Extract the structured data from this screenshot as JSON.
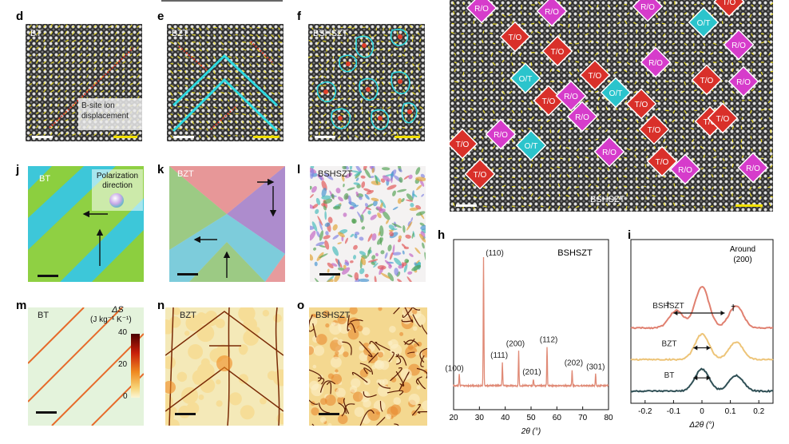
{
  "labels": {
    "d": "d",
    "e": "e",
    "f": "f",
    "j": "j",
    "k": "k",
    "l": "l",
    "m": "m",
    "n": "n",
    "o": "o",
    "h": "h",
    "i": "i"
  },
  "panel_d": {
    "material": "BT",
    "legend": "B-site ion displacement"
  },
  "panel_e": {
    "material": "BZT"
  },
  "panel_f": {
    "material": "BSHSZT"
  },
  "panel_g": {
    "material": "BSHSZT",
    "domains": [
      {
        "t": "R/O",
        "c": "#d63ccb"
      },
      {
        "t": "R/O",
        "c": "#d63ccb"
      },
      {
        "t": "R/O",
        "c": "#d63ccb"
      },
      {
        "t": "T/O",
        "c": "#d9302a"
      },
      {
        "t": "T/O",
        "c": "#d9302a"
      },
      {
        "t": "O/T",
        "c": "#2bc4cc"
      },
      {
        "t": "T/O",
        "c": "#d9302a"
      },
      {
        "t": "R/O",
        "c": "#d63ccb"
      },
      {
        "t": "R/O",
        "c": "#d63ccb"
      },
      {
        "t": "O/T",
        "c": "#2bc4cc"
      },
      {
        "t": "T/O",
        "c": "#d9302a"
      },
      {
        "t": "O/T",
        "c": "#2bc4cc"
      },
      {
        "t": "R/O",
        "c": "#d63ccb"
      },
      {
        "t": "T/O",
        "c": "#d9302a"
      },
      {
        "t": "R/O",
        "c": "#d63ccb"
      },
      {
        "t": "T/O",
        "c": "#d9302a"
      },
      {
        "t": "R/O",
        "c": "#d63ccb"
      },
      {
        "t": "T/O",
        "c": "#d9302a"
      },
      {
        "t": "O/T",
        "c": "#2bc4cc"
      },
      {
        "t": "T/O",
        "c": "#d9302a"
      },
      {
        "t": "R/O",
        "c": "#d63ccb"
      },
      {
        "t": "R/O",
        "c": "#d63ccb"
      },
      {
        "t": "T/O",
        "c": "#d9302a"
      },
      {
        "t": "T/O",
        "c": "#d9302a"
      },
      {
        "t": "R/O",
        "c": "#d63ccb"
      },
      {
        "t": "T/O",
        "c": "#d9302a"
      },
      {
        "t": "R/O",
        "c": "#d63ccb"
      },
      {
        "t": "T/O",
        "c": "#d9302a"
      },
      {
        "t": "T/O",
        "c": "#d9302a"
      }
    ]
  },
  "panel_j": {
    "material": "BT",
    "legend": "Polarization direction"
  },
  "panel_k": {
    "material": "BZT"
  },
  "panel_l": {
    "material": "BSHSZT"
  },
  "panel_m": {
    "material": "BT",
    "colorbar_title": "ΔS",
    "colorbar_unit": "(J kg⁻¹ K⁻¹)",
    "colorbar_ticks": [
      "40",
      "20",
      "0"
    ]
  },
  "panel_n": {
    "material": "BZT"
  },
  "panel_o": {
    "material": "BSHSZT"
  },
  "chart_data": [
    {
      "type": "line",
      "panel": "h",
      "title": "BSHSZT",
      "xlabel": "2θ (°)",
      "xlim": [
        20,
        80
      ],
      "xticks": [
        "20",
        "30",
        "40",
        "50",
        "60",
        "70",
        "80"
      ],
      "peaks": [
        {
          "label": "(100)",
          "x": 22.2,
          "y": 0.09
        },
        {
          "label": "(110)",
          "x": 31.6,
          "y": 1.0
        },
        {
          "label": "(111)",
          "x": 38.9,
          "y": 0.18
        },
        {
          "label": "(200)",
          "x": 45.2,
          "y": 0.27
        },
        {
          "label": "(201)",
          "x": 50.9,
          "y": 0.05
        },
        {
          "label": "(112)",
          "x": 56.2,
          "y": 0.3
        },
        {
          "label": "(202)",
          "x": 65.9,
          "y": 0.12
        },
        {
          "label": "(301)",
          "x": 75.0,
          "y": 0.09
        }
      ],
      "color": "#e08a76"
    },
    {
      "type": "line",
      "panel": "i",
      "annotation": "Around (200)",
      "xlabel": "Δ2θ (°)",
      "xlim": [
        -0.25,
        0.25
      ],
      "xticks": [
        "-0.2",
        "-0.1",
        "0",
        "0.1",
        "0.2"
      ],
      "series": [
        {
          "name": "BSHSZT",
          "color": "#e08070",
          "offset": 2.0,
          "peaks": [
            {
              "x": 0.0,
              "h": 1.3
            },
            {
              "x": -0.09,
              "h": 0.55
            },
            {
              "x": 0.12,
              "h": 0.7
            }
          ]
        },
        {
          "name": "BZT",
          "color": "#edc478",
          "offset": 1.0,
          "peaks": [
            {
              "x": 0.0,
              "h": 0.8
            },
            {
              "x": 0.12,
              "h": 0.55
            }
          ]
        },
        {
          "name": "BT",
          "color": "#2f4f55",
          "offset": 0.0,
          "peaks": [
            {
              "x": 0.0,
              "h": 0.7
            },
            {
              "x": 0.12,
              "h": 0.5
            }
          ]
        }
      ],
      "markers": [
        "†",
        "†"
      ]
    }
  ]
}
